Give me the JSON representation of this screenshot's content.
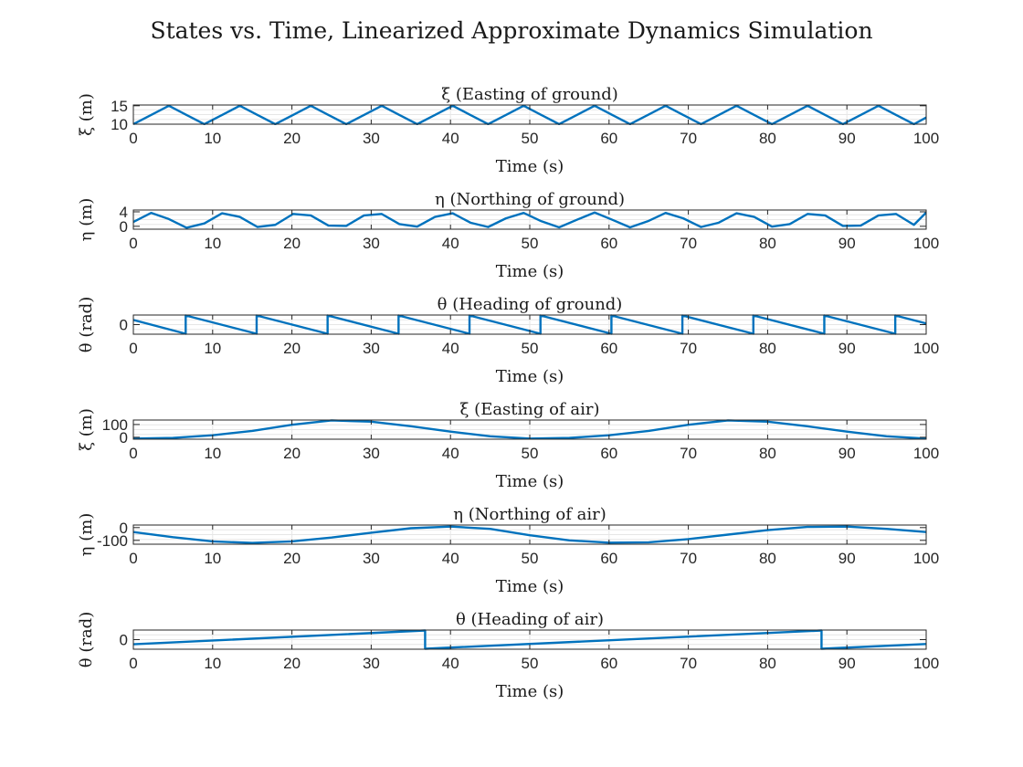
{
  "figure": {
    "title": "States vs. Time, Linearized Approximate Dynamics Simulation",
    "line_color": "#0072BD",
    "grid_color": "#e6e6e6"
  },
  "chart_data": [
    {
      "type": "line",
      "title": "ξ (Easting of ground)",
      "xlabel": "Time (s)",
      "ylabel": "ξ (m)",
      "xlim": [
        0,
        100
      ],
      "ylim": [
        10,
        15.2
      ],
      "xticks": [
        0,
        10,
        20,
        30,
        40,
        50,
        60,
        70,
        80,
        90,
        100
      ],
      "xtick_labels": [
        "0",
        "10",
        "20",
        "30",
        "40",
        "50",
        "60",
        "70",
        "80",
        "90",
        "100"
      ],
      "yticks": [
        10,
        15
      ],
      "ytick_labels": [
        "10",
        "15"
      ],
      "grid": true,
      "series": [
        {
          "function": "10 + 5*(1 - cos(2*pi*t/8.95))/2 approx",
          "t": [
            0,
            2.24,
            4.48,
            6.71,
            8.95,
            11.19,
            13.43,
            15.66,
            17.9,
            20.14,
            22.38,
            24.61,
            26.85,
            29.09,
            31.33,
            33.56,
            35.8,
            38.04,
            40.28,
            42.51,
            44.75,
            46.99,
            49.23,
            51.46,
            53.7,
            55.94,
            58.18,
            60.41,
            62.65,
            64.89,
            67.13,
            69.36,
            71.6,
            73.84,
            76.08,
            78.31,
            80.55,
            82.79,
            85.03,
            87.26,
            89.5,
            91.74,
            93.98,
            96.21,
            98.45,
            100
          ],
          "y": [
            10,
            12.5,
            15,
            12.5,
            10,
            12.5,
            15,
            12.5,
            10,
            12.5,
            15,
            12.5,
            10,
            12.5,
            15,
            12.5,
            10,
            12.5,
            15,
            12.5,
            10,
            12.5,
            15,
            12.5,
            10,
            12.5,
            15,
            12.5,
            10,
            12.5,
            15,
            12.5,
            10,
            12.5,
            15,
            12.5,
            10,
            12.5,
            15,
            12.5,
            10,
            12.5,
            15,
            12.5,
            10,
            11.8
          ]
        }
      ]
    },
    {
      "type": "line",
      "title": "η (Northing of ground)",
      "xlabel": "Time (s)",
      "ylabel": "η (m)",
      "xlim": [
        0,
        100
      ],
      "ylim": [
        -0.8,
        4.5
      ],
      "xticks": [
        0,
        10,
        20,
        30,
        40,
        50,
        60,
        70,
        80,
        90,
        100
      ],
      "xtick_labels": [
        "0",
        "10",
        "20",
        "30",
        "40",
        "50",
        "60",
        "70",
        "80",
        "90",
        "100"
      ],
      "yticks": [
        0,
        4
      ],
      "ytick_labels": [
        "0",
        "4"
      ],
      "grid": true,
      "series": [
        {
          "t": [
            0,
            2.24,
            4.48,
            6.71,
            8.95,
            11.19,
            13.43,
            15.66,
            17.9,
            20.14,
            22.38,
            24.61,
            26.85,
            29.09,
            31.33,
            33.56,
            35.8,
            38.04,
            40.28,
            42.51,
            44.75,
            46.99,
            49.23,
            51.46,
            53.7,
            55.94,
            58.18,
            60.41,
            62.65,
            64.89,
            67.13,
            69.36,
            71.6,
            73.84,
            76.08,
            78.31,
            80.55,
            82.79,
            85.03,
            87.26,
            89.5,
            91.74,
            93.98,
            96.21,
            98.45,
            100
          ],
          "y": [
            1.2,
            3.7,
            2.0,
            -0.4,
            0.8,
            3.6,
            2.6,
            -0.2,
            0.4,
            3.4,
            3.0,
            0.2,
            0.1,
            3.0,
            3.4,
            0.6,
            -0.1,
            2.6,
            3.6,
            1.0,
            -0.2,
            2.2,
            3.7,
            1.4,
            -0.3,
            1.8,
            3.8,
            1.8,
            -0.3,
            1.4,
            3.7,
            2.2,
            -0.2,
            1.0,
            3.6,
            2.6,
            -0.1,
            0.6,
            3.4,
            3.0,
            0.1,
            0.2,
            3.0,
            3.4,
            0.4,
            3.8
          ]
        }
      ]
    },
    {
      "type": "line",
      "title": "θ (Heading of ground)",
      "xlabel": "Time (s)",
      "ylabel": "θ (rad)",
      "xlim": [
        0,
        100
      ],
      "ylim": [
        -3.3,
        3.3
      ],
      "xticks": [
        0,
        10,
        20,
        30,
        40,
        50,
        60,
        70,
        80,
        90,
        100
      ],
      "xtick_labels": [
        "0",
        "10",
        "20",
        "30",
        "40",
        "50",
        "60",
        "70",
        "80",
        "90",
        "100"
      ],
      "yticks": [
        0
      ],
      "ytick_labels": [
        "0"
      ],
      "grid": true,
      "series": [
        {
          "t": [
            0,
            6.6,
            6.6,
            15.55,
            15.55,
            24.5,
            24.5,
            33.45,
            33.45,
            42.4,
            42.4,
            51.35,
            51.35,
            60.3,
            60.3,
            69.25,
            69.25,
            78.2,
            78.2,
            87.15,
            87.15,
            96.1,
            96.1,
            100
          ],
          "y": [
            1.6,
            -3.14,
            3.14,
            -3.14,
            3.14,
            -3.14,
            3.14,
            -3.14,
            3.14,
            -3.14,
            3.14,
            -3.14,
            3.14,
            -3.14,
            3.14,
            -3.14,
            3.14,
            -3.14,
            3.14,
            -3.14,
            3.14,
            -3.14,
            3.14,
            0.4
          ]
        }
      ]
    },
    {
      "type": "line",
      "title": "ξ (Easting of air)",
      "xlabel": "Time (s)",
      "ylabel": "ξ (m)",
      "xlim": [
        0,
        100
      ],
      "ylim": [
        -15,
        135
      ],
      "xticks": [
        0,
        10,
        20,
        30,
        40,
        50,
        60,
        70,
        80,
        90,
        100
      ],
      "xtick_labels": [
        "0",
        "10",
        "20",
        "30",
        "40",
        "50",
        "60",
        "70",
        "80",
        "90",
        "100"
      ],
      "yticks": [
        0,
        100
      ],
      "ytick_labels": [
        "0",
        "100"
      ],
      "grid": true,
      "series": [
        {
          "t": [
            0,
            5,
            10,
            15,
            20,
            25,
            30,
            35,
            40,
            45,
            50,
            55,
            60,
            65,
            70,
            75,
            80,
            85,
            90,
            95,
            100
          ],
          "y": [
            -10,
            -5,
            16,
            50,
            98,
            132,
            122,
            86,
            44,
            8,
            -10,
            -5,
            16,
            50,
            98,
            132,
            122,
            86,
            44,
            8,
            -10
          ]
        }
      ]
    },
    {
      "type": "line",
      "title": "η (Northing of air)",
      "xlabel": "Time (s)",
      "ylabel": "η (m)",
      "xlim": [
        0,
        100
      ],
      "ylim": [
        -130,
        20
      ],
      "xticks": [
        0,
        10,
        20,
        30,
        40,
        50,
        60,
        70,
        80,
        90,
        100
      ],
      "xtick_labels": [
        "0",
        "10",
        "20",
        "30",
        "40",
        "50",
        "60",
        "70",
        "80",
        "90",
        "100"
      ],
      "yticks": [
        -100,
        0
      ],
      "ytick_labels": [
        "-100",
        "0"
      ],
      "grid": true,
      "series": [
        {
          "t": [
            0,
            5,
            10,
            15,
            20,
            25,
            30,
            35,
            40,
            45,
            50,
            55,
            60,
            65,
            70,
            75,
            80,
            85,
            90,
            95,
            100
          ],
          "y": [
            -35,
            -75,
            -108,
            -120,
            -108,
            -78,
            -40,
            -5,
            8,
            -10,
            -60,
            -100,
            -118,
            -115,
            -90,
            -55,
            -20,
            5,
            8,
            -10,
            -35
          ]
        }
      ]
    },
    {
      "type": "line",
      "title": "θ (Heading of air)",
      "xlabel": "Time (s)",
      "ylabel": "θ (rad)",
      "xlim": [
        0,
        100
      ],
      "ylim": [
        -3.3,
        3.3
      ],
      "xticks": [
        0,
        10,
        20,
        30,
        40,
        50,
        60,
        70,
        80,
        90,
        100
      ],
      "xtick_labels": [
        "0",
        "10",
        "20",
        "30",
        "40",
        "50",
        "60",
        "70",
        "80",
        "90",
        "100"
      ],
      "yticks": [
        0
      ],
      "ytick_labels": [
        "0"
      ],
      "grid": true,
      "series": [
        {
          "t": [
            0,
            36.8,
            36.8,
            86.8,
            86.8,
            100
          ],
          "y": [
            -1.6,
            3.14,
            -3.14,
            3.14,
            -3.14,
            -1.5
          ]
        }
      ]
    }
  ]
}
